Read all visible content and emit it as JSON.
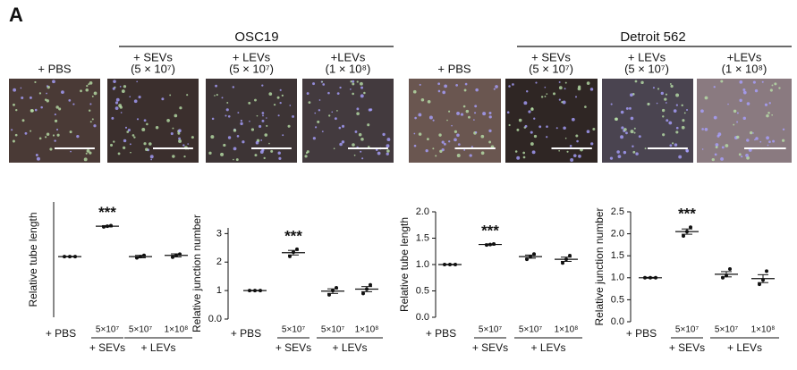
{
  "panel_label": "A",
  "cell_lines": [
    {
      "name": "OSC19",
      "control": "+ PBS",
      "treatments": [
        [
          "+ SEVs",
          "(5 × 10⁷)"
        ],
        [
          "+ LEVs",
          "(5 × 10⁷)"
        ],
        [
          "+LEVs",
          "(1 × 10⁸)"
        ]
      ]
    },
    {
      "name": "Detroit 562",
      "control": "+ PBS",
      "treatments": [
        [
          "+ SEVs",
          "(5 × 10⁷)"
        ],
        [
          "+ LEVs",
          "(5 × 10⁷)"
        ],
        [
          "+LEVs",
          "(1 × 10⁸)"
        ]
      ]
    }
  ],
  "chart_data": [
    {
      "type": "dot",
      "ylabel": "Relative tube length",
      "categories": [
        "+ PBS",
        "5×10⁷",
        "5×10⁷",
        "1×10⁸"
      ],
      "groups": [
        "+ SEVs",
        "+ LEVs"
      ],
      "annotation": "***",
      "points": [
        [
          1.0,
          1.0,
          1.0
        ],
        [
          1.49,
          1.5,
          1.51
        ],
        [
          0.98,
          1.0,
          1.02
        ],
        [
          0.99,
          1.02,
          1.04
        ]
      ],
      "means": [
        1.0,
        1.5,
        1.0,
        1.02
      ],
      "sem": [
        0.005,
        0.01,
        0.02,
        0.025
      ],
      "ylim": [
        0,
        1.9
      ],
      "yticks": []
    },
    {
      "type": "dot",
      "ylabel": "Relative junction number",
      "categories": [
        "+ PBS",
        "5×10⁷",
        "5×10⁷",
        "1×10⁸"
      ],
      "groups": [
        "+ SEVs",
        "+ LEVs"
      ],
      "annotation": "***",
      "points": [
        [
          1.0,
          1.0,
          1.0
        ],
        [
          2.2,
          2.35,
          2.45
        ],
        [
          0.85,
          1.0,
          1.1
        ],
        [
          0.9,
          1.05,
          1.2
        ]
      ],
      "means": [
        1.0,
        2.33,
        0.98,
        1.05
      ],
      "sem": [
        0.01,
        0.08,
        0.08,
        0.09
      ],
      "ylim": [
        0,
        3.2
      ],
      "yticks": [
        {
          "value": 0,
          "label": "0.0"
        },
        1,
        2,
        3
      ]
    },
    {
      "type": "dot",
      "ylabel": "Relative tube length",
      "categories": [
        "+ PBS",
        "5×10⁷",
        "5×10⁷",
        "1×10⁸"
      ],
      "groups": [
        "+ SEVs",
        "+ LEVs"
      ],
      "annotation": "***",
      "points": [
        [
          1.0,
          1.0,
          1.0
        ],
        [
          1.37,
          1.38,
          1.39
        ],
        [
          1.1,
          1.15,
          1.2
        ],
        [
          1.03,
          1.1,
          1.17
        ]
      ],
      "means": [
        1.0,
        1.38,
        1.15,
        1.1
      ],
      "sem": [
        0.005,
        0.01,
        0.03,
        0.04
      ],
      "ylim": [
        0,
        2.0
      ],
      "yticks": [
        {
          "value": 0,
          "label": "0.0"
        },
        0.5,
        {
          "value": 1,
          "label": "1.0"
        },
        1.5,
        {
          "value": 2,
          "label": "2.0"
        }
      ]
    },
    {
      "type": "dot",
      "ylabel": "Relative junction number",
      "categories": [
        "+ PBS",
        "5×10⁷",
        "5×10⁷",
        "1×10⁸"
      ],
      "groups": [
        "+ SEVs",
        "+ LEVs"
      ],
      "annotation": "***",
      "points": [
        [
          1.0,
          1.0,
          1.0
        ],
        [
          1.95,
          2.05,
          2.15
        ],
        [
          1.0,
          1.05,
          1.2
        ],
        [
          0.85,
          0.95,
          1.15
        ]
      ],
      "means": [
        1.0,
        2.05,
        1.08,
        0.98
      ],
      "sem": [
        0.01,
        0.06,
        0.06,
        0.09
      ],
      "ylim": [
        0,
        2.5
      ],
      "yticks": [
        {
          "value": 0,
          "label": "0.0"
        },
        0.5,
        {
          "value": 1,
          "label": "1.0"
        },
        1.5,
        {
          "value": 2,
          "label": "2.0"
        },
        2.5
      ]
    }
  ]
}
